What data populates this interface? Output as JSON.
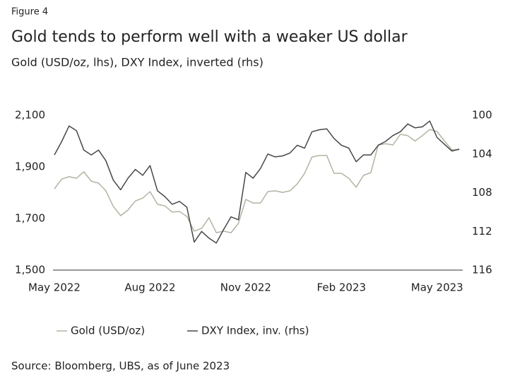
{
  "chart_data": {
    "type": "line",
    "figure_label": "Figure 4",
    "title": "Gold tends to perform well with a weaker US dollar",
    "subtitle": "Gold (USD/oz, lhs), DXY Index, inverted (rhs)",
    "source": "Source: Bloomberg, UBS, as of June 2023",
    "categories": [
      "May 2022",
      null,
      null,
      null,
      null,
      null,
      null,
      null,
      null,
      null,
      null,
      null,
      null,
      "Aug 2022",
      null,
      null,
      null,
      null,
      null,
      null,
      null,
      null,
      null,
      null,
      null,
      null,
      "Nov 2022",
      null,
      null,
      null,
      null,
      null,
      null,
      null,
      null,
      null,
      null,
      null,
      null,
      "Feb 2023",
      null,
      null,
      null,
      null,
      null,
      null,
      null,
      null,
      null,
      null,
      null,
      null,
      "May 2023",
      null,
      null,
      null
    ],
    "ylim": [
      1500,
      2100
    ],
    "yticks": [
      {
        "value": 1500,
        "label": "1,500"
      },
      {
        "value": 1700,
        "label": "1,700"
      },
      {
        "value": 1900,
        "label": "1,900"
      },
      {
        "value": 2100,
        "label": "2,100"
      }
    ],
    "y2lim": [
      116,
      100
    ],
    "y2ticks": [
      100,
      104,
      108,
      112,
      116
    ],
    "grid": false,
    "legend": "bottom",
    "series": [
      {
        "name": "Gold (USD/oz)",
        "color": "#b3b3a3",
        "values": [
          1815,
          1853,
          1862,
          1856,
          1881,
          1845,
          1837,
          1807,
          1747,
          1711,
          1733,
          1768,
          1779,
          1804,
          1755,
          1749,
          1725,
          1727,
          1708,
          1651,
          1662,
          1703,
          1645,
          1651,
          1645,
          1681,
          1774,
          1760,
          1760,
          1804,
          1807,
          1801,
          1807,
          1834,
          1875,
          1938,
          1944,
          1944,
          1875,
          1875,
          1856,
          1821,
          1867,
          1878,
          1985,
          1990,
          1985,
          2026,
          2021,
          2000,
          2021,
          2045,
          2037,
          2000,
          1966,
          1966
        ]
      },
      {
        "name": "DXY Index, inv. (rhs)",
        "color": "#474747",
        "axis": "y2",
        "values": [
          104.1,
          102.7,
          101.1,
          101.6,
          103.6,
          104.1,
          103.6,
          104.7,
          106.7,
          107.7,
          106.5,
          105.6,
          106.2,
          105.2,
          107.8,
          108.4,
          109.2,
          108.9,
          109.5,
          113.1,
          112.0,
          112.7,
          113.2,
          111.8,
          110.5,
          110.8,
          105.9,
          106.5,
          105.5,
          104.0,
          104.3,
          104.2,
          103.9,
          103.1,
          103.4,
          101.7,
          101.5,
          101.4,
          102.4,
          103.1,
          103.4,
          104.8,
          104.1,
          104.1,
          103.1,
          102.7,
          102.1,
          101.7,
          100.9,
          101.3,
          101.2,
          100.6,
          102.3,
          103.0,
          103.7,
          103.5
        ]
      }
    ]
  }
}
